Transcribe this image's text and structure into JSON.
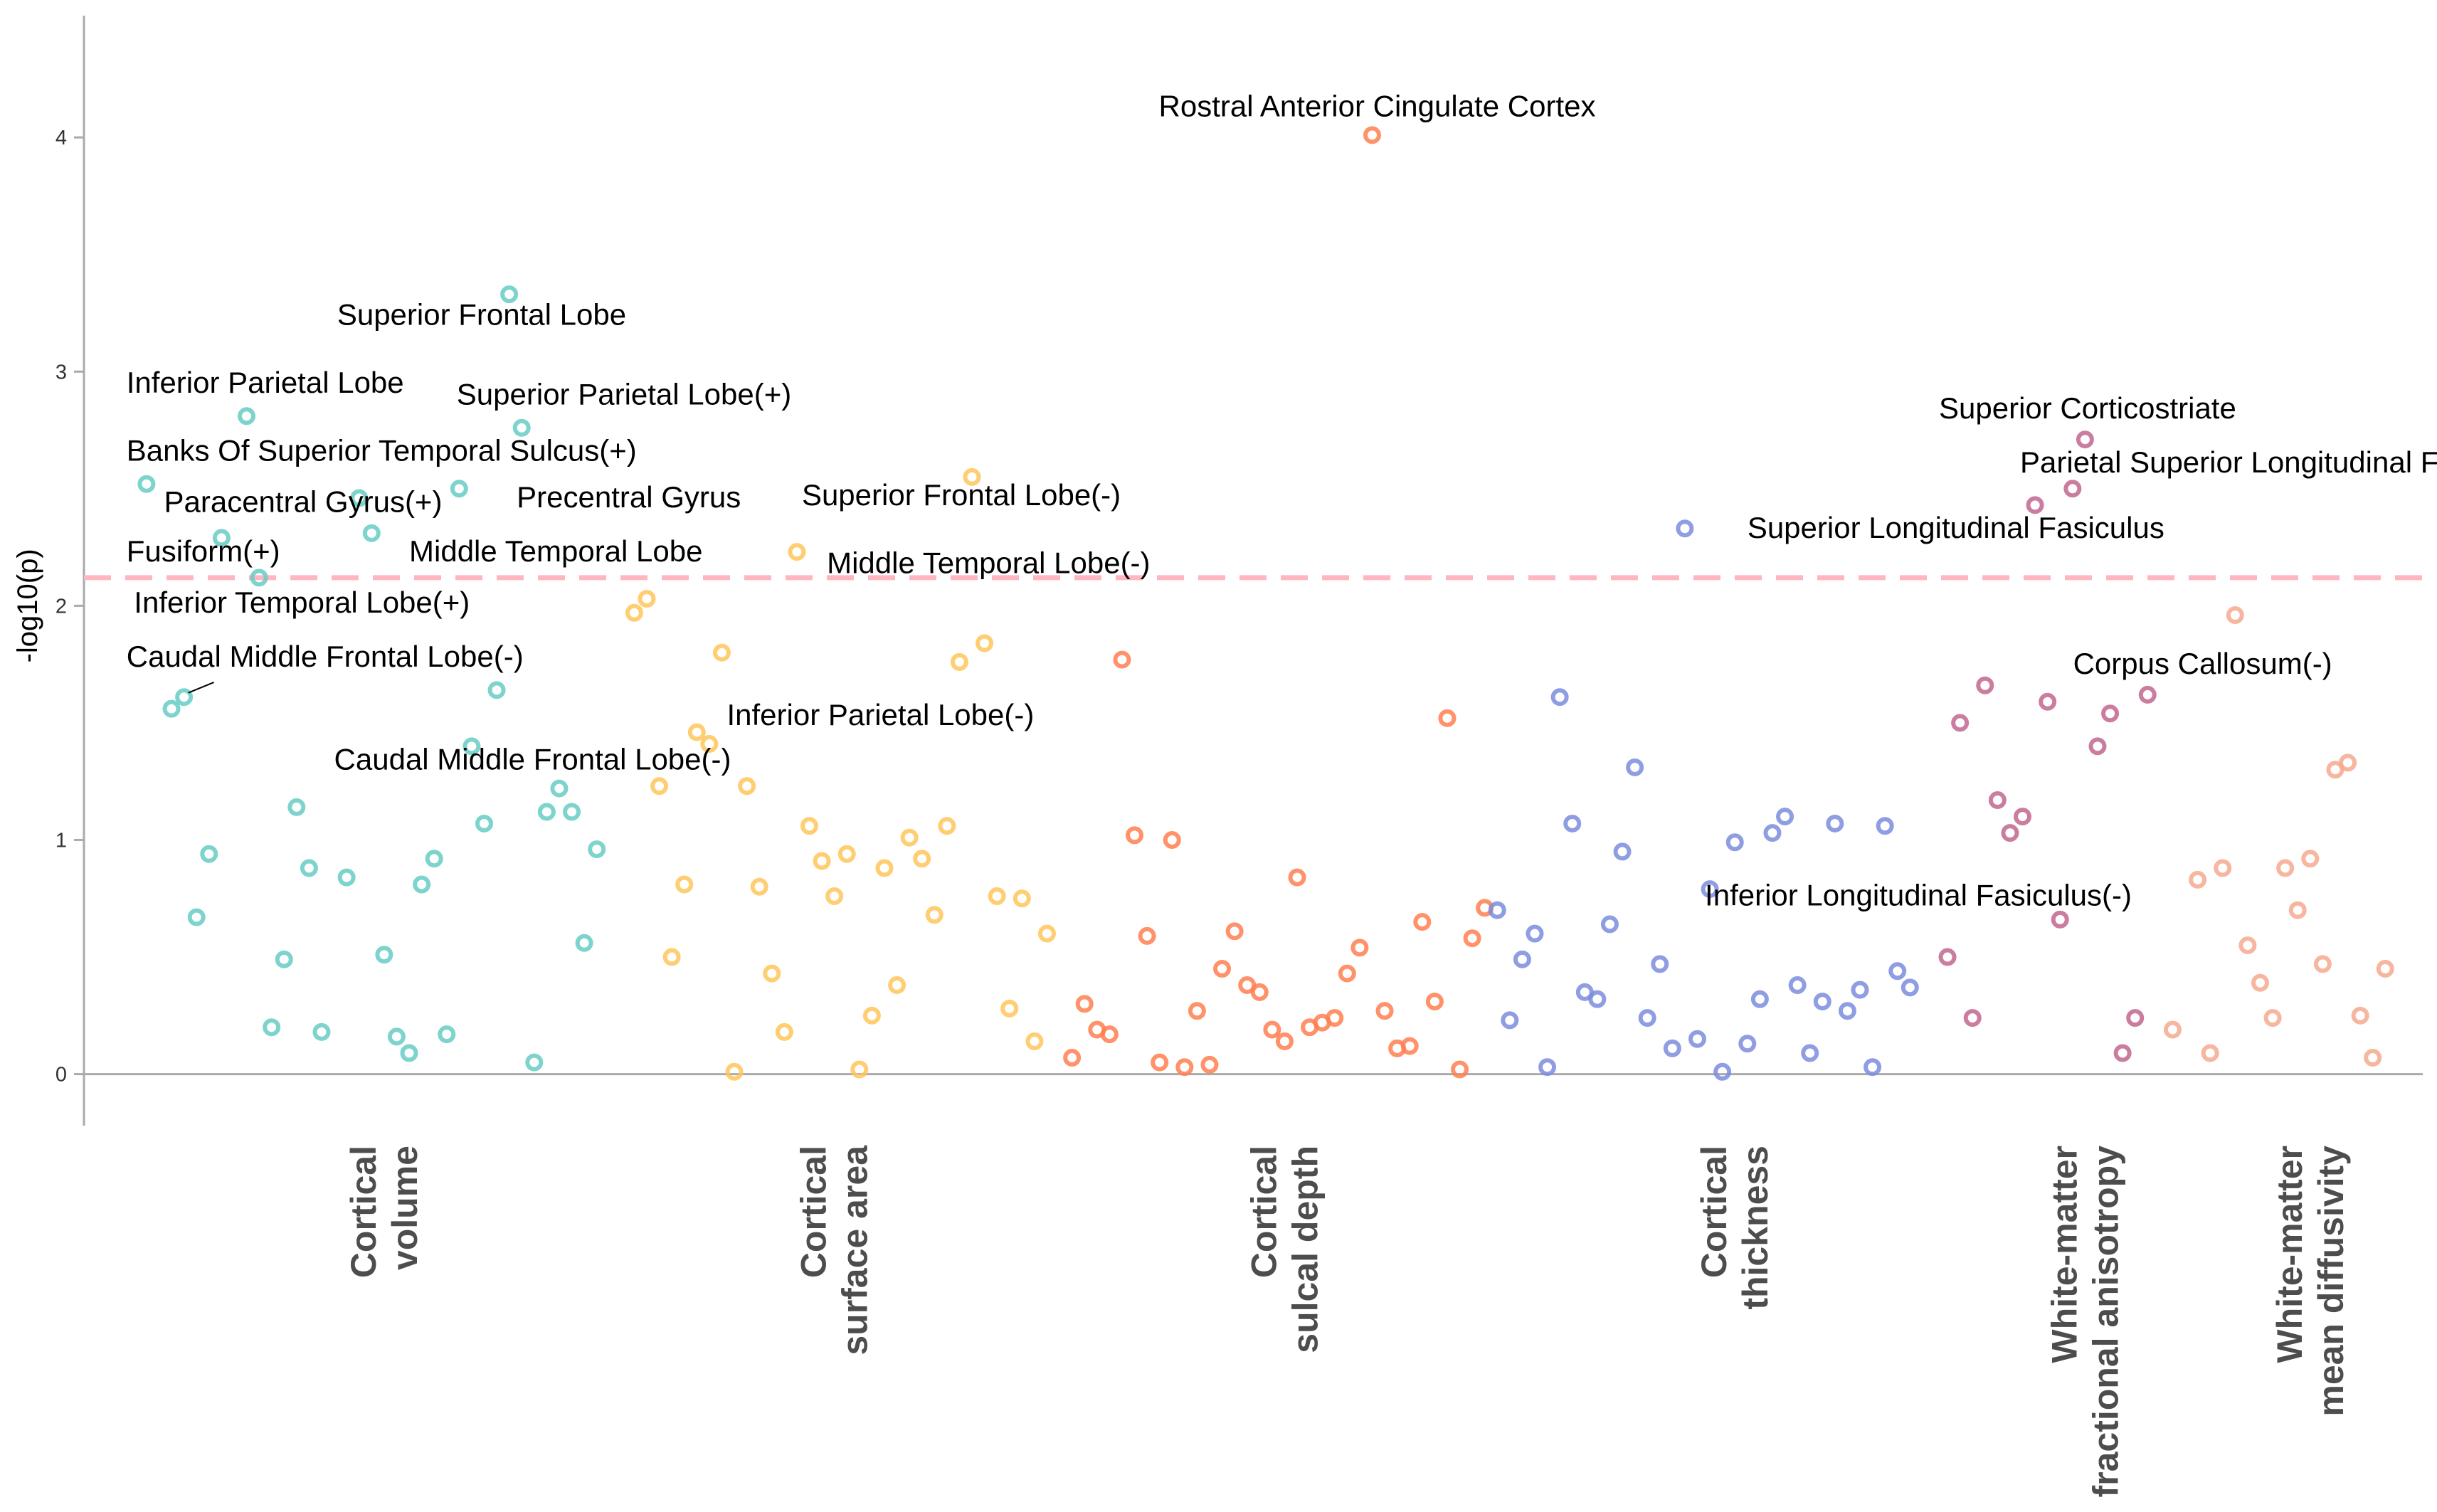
{
  "chart_data": {
    "type": "scatter",
    "title": "",
    "xlabel": "",
    "ylabel": "-log10(p)",
    "ylim": [
      -0.22,
      4.52
    ],
    "yticks": [
      0,
      1,
      2,
      3,
      4
    ],
    "threshold": {
      "y": 2.12,
      "color": "#FFB6C1",
      "style": "dashed"
    },
    "grid": false,
    "legend": "none",
    "categories": [
      {
        "name": "Cortical volume",
        "lines": [
          "Cortical",
          "volume"
        ],
        "color": "#66CDC4",
        "center": 10.5
      },
      {
        "name": "Cortical surface area",
        "lines": [
          "Cortical",
          "surface area"
        ],
        "color": "#FFC65A",
        "center": 28.5
      },
      {
        "name": "Cortical sulcal depth",
        "lines": [
          "Cortical",
          "sulcal depth"
        ],
        "color": "#FF7F50",
        "center": 46.5
      },
      {
        "name": "Cortical thickness",
        "lines": [
          "Cortical",
          "thickness"
        ],
        "color": "#7B8CDE",
        "center": 64.5
      },
      {
        "name": "White-matter fractional anisotropy",
        "lines": [
          "White-matter",
          "fractional anisotropy"
        ],
        "color": "#C2668F",
        "center": 78.5
      },
      {
        "name": "White-matter mean diffusivity",
        "lines": [
          "White-matter",
          "mean diffusivity"
        ],
        "color": "#F4A98E",
        "center": 87.5
      }
    ],
    "series": [
      {
        "category": "Cortical volume",
        "points": [
          [
            1,
            2.52
          ],
          [
            2,
            1.56
          ],
          [
            2.5,
            1.61
          ],
          [
            3,
            0.67
          ],
          [
            3.5,
            0.94
          ],
          [
            4,
            2.29
          ],
          [
            5,
            2.81
          ],
          [
            5.5,
            2.12
          ],
          [
            6,
            0.2
          ],
          [
            6.5,
            0.49
          ],
          [
            7,
            1.14
          ],
          [
            7.5,
            0.88
          ],
          [
            8,
            0.18
          ],
          [
            9,
            0.84
          ],
          [
            9.5,
            2.46
          ],
          [
            10,
            2.31
          ],
          [
            10.5,
            0.51
          ],
          [
            11,
            0.16
          ],
          [
            11.5,
            0.09
          ],
          [
            12,
            0.81
          ],
          [
            12.5,
            0.92
          ],
          [
            13,
            0.17
          ],
          [
            13.5,
            2.5
          ],
          [
            14,
            1.4
          ],
          [
            14.5,
            1.07
          ],
          [
            15,
            1.64
          ],
          [
            15.5,
            3.33
          ],
          [
            16,
            2.76
          ],
          [
            16.5,
            0.05
          ],
          [
            17,
            1.12
          ],
          [
            17.5,
            1.22
          ],
          [
            18,
            1.12
          ],
          [
            18.5,
            0.56
          ],
          [
            19,
            0.96
          ]
        ]
      },
      {
        "category": "Cortical surface area",
        "points": [
          [
            20.5,
            1.97
          ],
          [
            21,
            2.03
          ],
          [
            21.5,
            1.23
          ],
          [
            22,
            0.5
          ],
          [
            22.5,
            0.81
          ],
          [
            23,
            1.46
          ],
          [
            23.5,
            1.41
          ],
          [
            24,
            1.8
          ],
          [
            24.5,
            0.01
          ],
          [
            25,
            1.23
          ],
          [
            25.5,
            0.8
          ],
          [
            26,
            0.43
          ],
          [
            26.5,
            0.18
          ],
          [
            27,
            2.23
          ],
          [
            27.5,
            1.06
          ],
          [
            28,
            0.91
          ],
          [
            28.5,
            0.76
          ],
          [
            29,
            0.94
          ],
          [
            29.5,
            0.02
          ],
          [
            30,
            0.25
          ],
          [
            30.5,
            0.88
          ],
          [
            31,
            0.38
          ],
          [
            31.5,
            1.01
          ],
          [
            32,
            0.92
          ],
          [
            32.5,
            0.68
          ],
          [
            33,
            1.06
          ],
          [
            33.5,
            1.76
          ],
          [
            34,
            2.55
          ],
          [
            34.5,
            1.84
          ],
          [
            35,
            0.76
          ],
          [
            35.5,
            0.28
          ],
          [
            36,
            0.75
          ],
          [
            36.5,
            0.14
          ],
          [
            37,
            0.6
          ]
        ]
      },
      {
        "category": "Cortical sulcal depth",
        "points": [
          [
            38,
            0.07
          ],
          [
            38.5,
            0.3
          ],
          [
            39,
            0.19
          ],
          [
            39.5,
            0.17
          ],
          [
            40,
            1.77
          ],
          [
            40.5,
            1.02
          ],
          [
            41,
            0.59
          ],
          [
            41.5,
            0.05
          ],
          [
            42,
            1.0
          ],
          [
            42.5,
            0.03
          ],
          [
            43,
            0.27
          ],
          [
            43.5,
            0.04
          ],
          [
            44,
            0.45
          ],
          [
            44.5,
            0.61
          ],
          [
            45,
            0.38
          ],
          [
            45.5,
            0.35
          ],
          [
            46,
            0.19
          ],
          [
            46.5,
            0.14
          ],
          [
            47,
            0.84
          ],
          [
            47.5,
            0.2
          ],
          [
            48,
            0.22
          ],
          [
            48.5,
            0.24
          ],
          [
            49,
            0.43
          ],
          [
            49.5,
            0.54
          ],
          [
            50,
            4.01
          ],
          [
            50.5,
            0.27
          ],
          [
            51,
            0.11
          ],
          [
            51.5,
            0.12
          ],
          [
            52,
            0.65
          ],
          [
            52.5,
            0.31
          ],
          [
            53,
            1.52
          ],
          [
            53.5,
            0.02
          ],
          [
            54,
            0.58
          ],
          [
            54.5,
            0.71
          ]
        ]
      },
      {
        "category": "Cortical thickness",
        "points": [
          [
            55,
            0.7
          ],
          [
            55.5,
            0.23
          ],
          [
            56,
            0.49
          ],
          [
            56.5,
            0.6
          ],
          [
            57,
            0.03
          ],
          [
            57.5,
            1.61
          ],
          [
            58,
            1.07
          ],
          [
            58.5,
            0.35
          ],
          [
            59,
            0.32
          ],
          [
            59.5,
            0.64
          ],
          [
            60,
            0.95
          ],
          [
            60.5,
            1.31
          ],
          [
            61,
            0.24
          ],
          [
            61.5,
            0.47
          ],
          [
            62,
            0.11
          ],
          [
            62.5,
            2.33
          ],
          [
            63,
            0.15
          ],
          [
            63.5,
            0.79
          ],
          [
            64,
            0.01
          ],
          [
            64.5,
            0.99
          ],
          [
            65,
            0.13
          ],
          [
            65.5,
            0.32
          ],
          [
            66,
            1.03
          ],
          [
            66.5,
            1.1
          ],
          [
            67,
            0.38
          ],
          [
            67.5,
            0.09
          ],
          [
            68,
            0.31
          ],
          [
            68.5,
            1.07
          ],
          [
            69,
            0.27
          ],
          [
            69.5,
            0.36
          ],
          [
            70,
            0.03
          ],
          [
            70.5,
            1.06
          ],
          [
            71,
            0.44
          ],
          [
            71.5,
            0.37
          ]
        ]
      },
      {
        "category": "White-matter fractional anisotropy",
        "points": [
          [
            73,
            0.5
          ],
          [
            73.5,
            1.5
          ],
          [
            74,
            0.24
          ],
          [
            74.5,
            1.66
          ],
          [
            75,
            1.17
          ],
          [
            75.5,
            1.03
          ],
          [
            76,
            1.1
          ],
          [
            76.5,
            2.43
          ],
          [
            77,
            1.59
          ],
          [
            77.5,
            0.66
          ],
          [
            78,
            2.5
          ],
          [
            78.5,
            2.71
          ],
          [
            79,
            1.4
          ],
          [
            79.5,
            1.54
          ],
          [
            80,
            0.09
          ],
          [
            80.5,
            0.24
          ],
          [
            81,
            1.62
          ]
        ]
      },
      {
        "category": "White-matter mean diffusivity",
        "points": [
          [
            82,
            0.19
          ],
          [
            83,
            0.83
          ],
          [
            83.5,
            0.09
          ],
          [
            84,
            0.88
          ],
          [
            84.5,
            1.96
          ],
          [
            85,
            0.55
          ],
          [
            85.5,
            0.39
          ],
          [
            86,
            0.24
          ],
          [
            86.5,
            0.88
          ],
          [
            87,
            0.7
          ],
          [
            87.5,
            0.92
          ],
          [
            88,
            0.47
          ],
          [
            88.5,
            1.3
          ],
          [
            89,
            1.33
          ],
          [
            89.5,
            0.25
          ],
          [
            90,
            0.07
          ],
          [
            90.5,
            0.45
          ]
        ]
      }
    ],
    "annotations": [
      {
        "text": "Rostral Anterior Cingulate Cortex",
        "point": [
          50,
          4.01
        ],
        "label_pos": [
          50.2,
          4.09
        ],
        "anchor": "middle"
      },
      {
        "text": "Superior Frontal Lobe",
        "point": [
          15.5,
          3.33
        ],
        "label_pos": [
          14.4,
          3.2
        ],
        "anchor": "middle"
      },
      {
        "text": "Inferior Parietal Lobe",
        "point": [
          5,
          2.81
        ],
        "label_pos": [
          0.2,
          2.91
        ],
        "anchor": "start"
      },
      {
        "text": "Superior Parietal Lobe(+)",
        "point": [
          16,
          2.76
        ],
        "label_pos": [
          13.4,
          2.86
        ],
        "anchor": "start"
      },
      {
        "text": "Banks Of Superior Temporal Sulcus(+)",
        "point": [
          1,
          2.52
        ],
        "label_pos": [
          0.2,
          2.62
        ],
        "anchor": "start"
      },
      {
        "text": "Paracentral Gyrus(+)",
        "point": [
          9.5,
          2.46
        ],
        "label_pos": [
          1.7,
          2.4
        ],
        "anchor": "start"
      },
      {
        "text": "Precentral Gyrus",
        "point": [
          13.5,
          2.5
        ],
        "label_pos": [
          15.8,
          2.42
        ],
        "anchor": "start"
      },
      {
        "text": "Superior Frontal Lobe(-)",
        "point": [
          34,
          2.55
        ],
        "label_pos": [
          27.2,
          2.43
        ],
        "anchor": "start"
      },
      {
        "text": "Fusiform(+)",
        "point": [
          4,
          2.29
        ],
        "label_pos": [
          0.2,
          2.19
        ],
        "anchor": "start"
      },
      {
        "text": "Middle Temporal Lobe",
        "point": [
          10,
          2.31
        ],
        "label_pos": [
          11.5,
          2.19
        ],
        "anchor": "start"
      },
      {
        "text": "Middle Temporal Lobe(-)",
        "point": [
          27,
          2.23
        ],
        "label_pos": [
          28.2,
          2.14
        ],
        "anchor": "start"
      },
      {
        "text": "Inferior Temporal Lobe(+)",
        "point": [
          5.5,
          2.12
        ],
        "label_pos": [
          0.5,
          1.97
        ],
        "anchor": "start"
      },
      {
        "text": "Caudal Middle Frontal Lobe(-)",
        "point": [
          2.5,
          1.61
        ],
        "label_pos": [
          0.2,
          1.74
        ],
        "anchor": "start",
        "leader": true
      },
      {
        "text": "Inferior Parietal Lobe(-)",
        "point": [
          23,
          1.46
        ],
        "label_pos": [
          24.2,
          1.49
        ],
        "anchor": "start"
      },
      {
        "text": "Caudal Middle Frontal Lobe(-)",
        "point": [
          25,
          1.23
        ],
        "label_pos": [
          8.5,
          1.3
        ],
        "anchor": "start"
      },
      {
        "text": "Superior Corticostriate",
        "point": [
          78.5,
          2.71
        ],
        "label_pos": [
          78.6,
          2.8
        ],
        "anchor": "middle"
      },
      {
        "text": "Parietal Superior Longitudinal Fasiculus",
        "point": [
          78,
          2.5
        ],
        "label_pos": [
          75.9,
          2.57
        ],
        "anchor": "start"
      },
      {
        "text": "Superior Longitudinal Fasiculus",
        "point": [
          62.5,
          2.33
        ],
        "label_pos": [
          65.0,
          2.29
        ],
        "anchor": "start"
      },
      {
        "text": "Corpus Callosum(-)",
        "point": [
          81,
          1.62
        ],
        "label_pos": [
          83.2,
          1.71
        ],
        "anchor": "middle"
      },
      {
        "text": "Inferior Longitudinal Fasiculus(-)",
        "point": [
          63.5,
          0.79
        ],
        "label_pos": [
          63.3,
          0.72
        ],
        "anchor": "start"
      }
    ]
  }
}
